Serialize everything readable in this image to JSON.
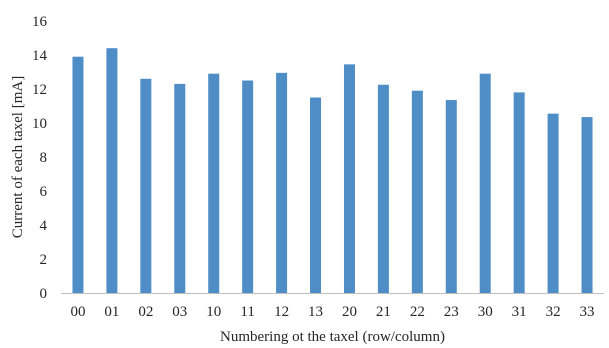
{
  "chart_data": {
    "type": "bar",
    "categories": [
      "00",
      "01",
      "02",
      "03",
      "10",
      "11",
      "12",
      "13",
      "20",
      "21",
      "22",
      "23",
      "30",
      "31",
      "32",
      "33"
    ],
    "values": [
      13.9,
      14.4,
      12.6,
      12.3,
      12.9,
      12.5,
      12.95,
      11.5,
      13.45,
      12.25,
      11.9,
      11.35,
      12.9,
      11.8,
      10.55,
      10.35
    ],
    "xlabel": "Numbering ot the taxel  (row/column)",
    "ylabel": "Current  of each taxel  [mA]",
    "ylim": [
      0,
      16
    ],
    "yticks": [
      0,
      2,
      4,
      6,
      8,
      10,
      12,
      14,
      16
    ],
    "grid": false,
    "bar_color": "#4f8dc6"
  }
}
